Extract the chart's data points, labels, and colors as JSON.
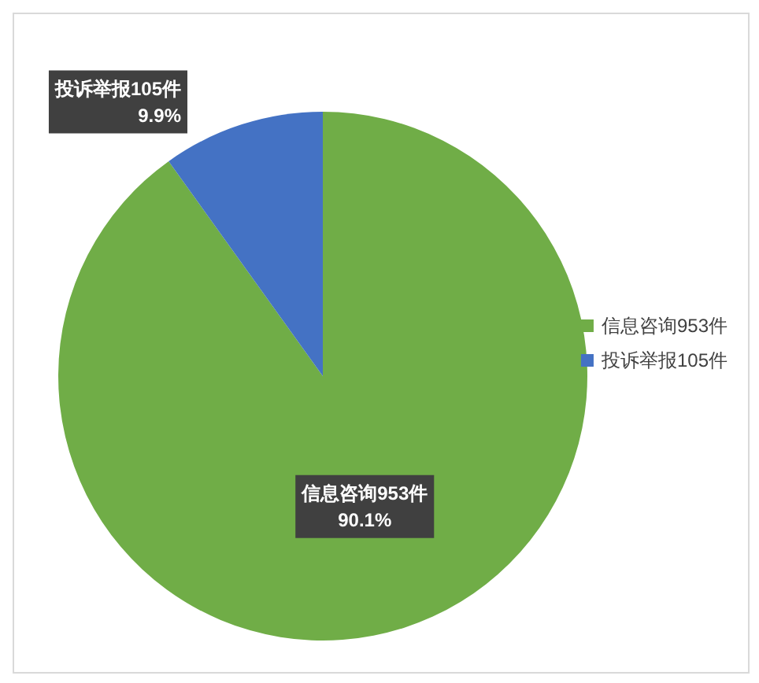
{
  "chart_data": {
    "type": "pie",
    "categories": [
      "信息咨询953件",
      "投诉举报105件"
    ],
    "values": [
      90.1,
      9.9
    ],
    "value_labels": [
      "90.1%",
      "9.9%"
    ],
    "colors": [
      "#70ad47",
      "#4472c4"
    ],
    "legend": "right"
  }
}
